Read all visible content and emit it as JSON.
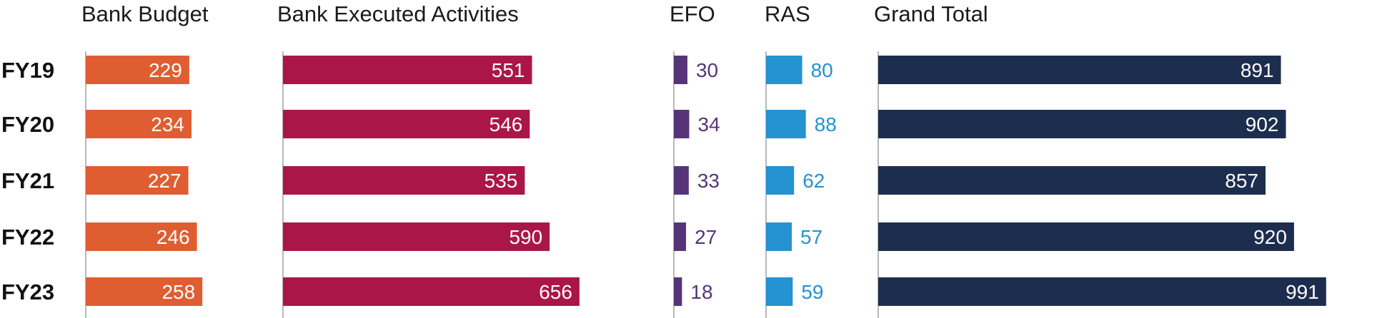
{
  "chart_data": {
    "type": "bar",
    "orientation": "horizontal",
    "categories": [
      "FY19",
      "FY20",
      "FY21",
      "FY22",
      "FY23"
    ],
    "series": [
      {
        "name": "Bank Budget",
        "values": [
          229,
          234,
          227,
          246,
          258
        ],
        "color": "#e05d32",
        "label_position": "inside",
        "label_color": "#ffffff"
      },
      {
        "name": "Bank Executed Activities",
        "values": [
          551,
          546,
          535,
          590,
          656
        ],
        "color": "#ab1649",
        "label_position": "inside",
        "label_color": "#ffffff"
      },
      {
        "name": "EFO",
        "values": [
          30,
          34,
          33,
          27,
          18
        ],
        "color": "#553577",
        "label_position": "outside",
        "label_color": "#553577"
      },
      {
        "name": "RAS",
        "values": [
          80,
          88,
          62,
          57,
          59
        ],
        "color": "#2592d2",
        "label_position": "outside",
        "label_color": "#2592d2"
      },
      {
        "name": "Grand Total",
        "values": [
          891,
          902,
          857,
          920,
          991
        ],
        "color": "#1d2d4e",
        "label_position": "inside",
        "label_color": "#ffffff"
      }
    ],
    "grid": false,
    "legend": "none"
  }
}
